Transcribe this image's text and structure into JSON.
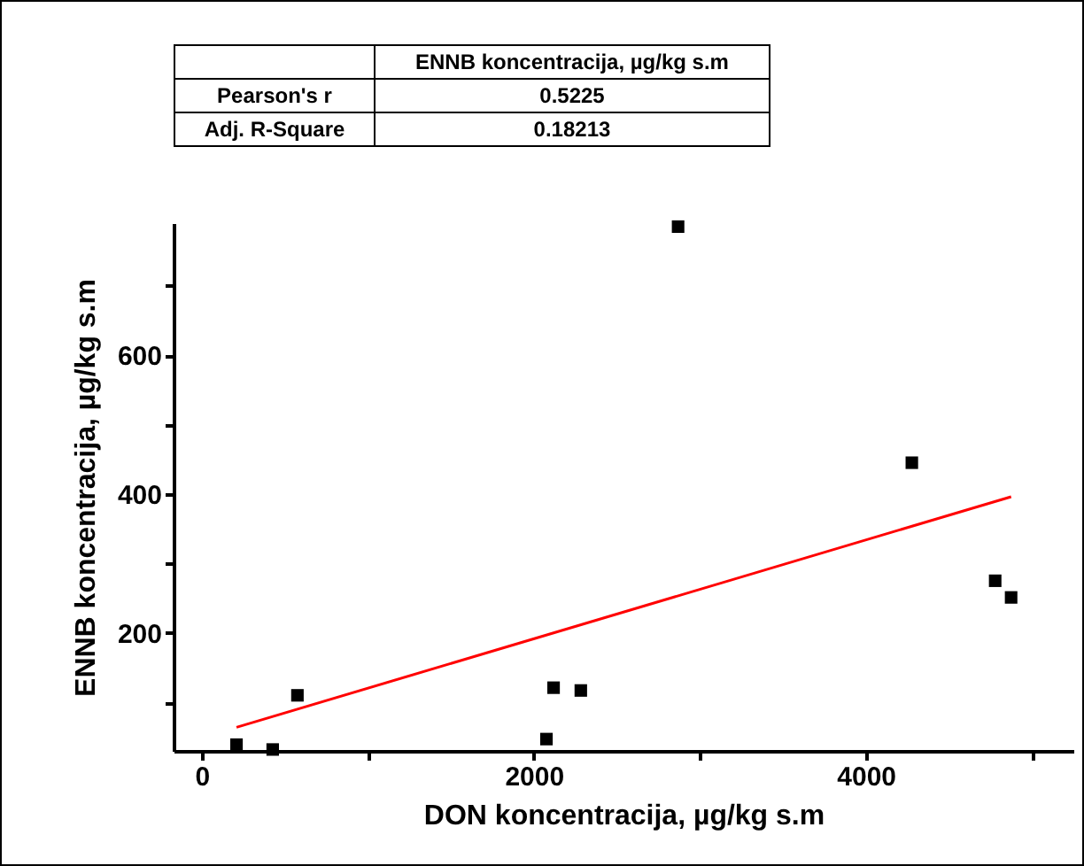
{
  "chart_data": {
    "type": "scatter",
    "xlabel": "DON koncentracija, µg/kg s.m",
    "ylabel": "ENNB koncentracija, µg/kg s.m",
    "xlim": [
      -170,
      5250
    ],
    "xticks": [
      0,
      {
        "value": 1000,
        "label": null
      },
      2000,
      {
        "value": 3000,
        "label": null
      },
      4000,
      {
        "value": 5000,
        "label": null
      }
    ],
    "ylim": [
      30,
      790
    ],
    "yticks": [
      {
        "value": 100,
        "label": null
      },
      200,
      {
        "value": 300,
        "label": null
      },
      400,
      {
        "value": 500,
        "label": null
      },
      600,
      {
        "value": 700,
        "label": null
      }
    ],
    "series": [
      {
        "marker": "square",
        "color": "#000000",
        "x": [
          209,
          427,
          576,
          2076,
          2119,
          2283,
          2869,
          4277,
          4779,
          4875
        ],
        "values": [
          39,
          32,
          110,
          47,
          121,
          117,
          785,
          445,
          275,
          251
        ]
      },
      {
        "type": "line",
        "color": "#ff0000",
        "x": [
          209,
          4875
        ],
        "values": [
          64,
          396
        ]
      }
    ],
    "annotations": [
      "ENNB koncentracija, µg/kg s.m",
      "Pearson's r",
      "0.5225",
      "Adj. R-Square",
      "0.18213"
    ]
  }
}
